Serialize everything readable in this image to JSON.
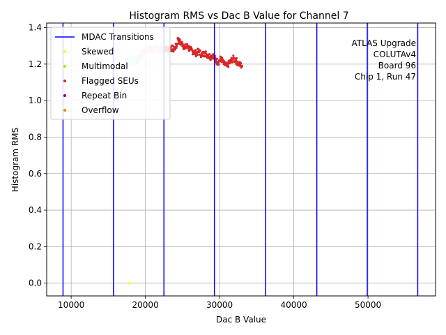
{
  "chart_data": {
    "type": "scatter",
    "title": "Histogram RMS vs Dac B Value for Channel 7",
    "xlabel": "Dac B Value",
    "ylabel": "Histogram RMS",
    "xlim": [
      6700,
      59100
    ],
    "ylim": [
      -0.07,
      1.425
    ],
    "xticks": [
      10000,
      20000,
      30000,
      40000,
      50000
    ],
    "xtick_labels": [
      "10000",
      "20000",
      "30000",
      "40000",
      "50000"
    ],
    "yticks": [
      0.0,
      0.2,
      0.4,
      0.6,
      0.8,
      1.0,
      1.2,
      1.4
    ],
    "ytick_labels": [
      "0.0",
      "0.2",
      "0.4",
      "0.6",
      "0.8",
      "1.0",
      "1.2",
      "1.4"
    ],
    "grid": true,
    "legend_position": "top-left",
    "legend": [
      {
        "label": "MDAC Transitions",
        "kind": "line",
        "color": "#0000ff"
      },
      {
        "label": "Skewed",
        "kind": "point",
        "color": "#ffff00"
      },
      {
        "label": "Multimodal",
        "kind": "point",
        "color": "#7fff00"
      },
      {
        "label": "Flagged SEUs",
        "kind": "point",
        "color": "#d62728"
      },
      {
        "label": "Repeat Bin",
        "kind": "point",
        "color": "#800080"
      },
      {
        "label": "Overflow",
        "kind": "point",
        "color": "#ff7f0e"
      }
    ],
    "annotation": [
      "ATLAS Upgrade",
      "COLUTAv4",
      "Board 96",
      "Chip 1, Run 47"
    ],
    "mdac_transitions": [
      8900,
      15700,
      22500,
      29300,
      36200,
      43100,
      49900,
      56700
    ],
    "series": [
      {
        "name": "Flagged SEUs",
        "color": "#d62728",
        "x_range": [
          22500,
          33000
        ],
        "points": [
          [
            22600,
            1.29
          ],
          [
            23000,
            1.28
          ],
          [
            23400,
            1.29
          ],
          [
            23800,
            1.28
          ],
          [
            24200,
            1.3
          ],
          [
            24400,
            1.34
          ],
          [
            24600,
            1.32
          ],
          [
            25000,
            1.31
          ],
          [
            25300,
            1.29
          ],
          [
            25700,
            1.3
          ],
          [
            26000,
            1.28
          ],
          [
            26400,
            1.27
          ],
          [
            26800,
            1.26
          ],
          [
            27200,
            1.27
          ],
          [
            27600,
            1.25
          ],
          [
            28000,
            1.26
          ],
          [
            28400,
            1.25
          ],
          [
            28800,
            1.24
          ],
          [
            29100,
            1.25
          ],
          [
            29500,
            1.22
          ],
          [
            29800,
            1.21
          ],
          [
            30200,
            1.23
          ],
          [
            30600,
            1.2
          ],
          [
            31000,
            1.19
          ],
          [
            31400,
            1.21
          ],
          [
            31800,
            1.23
          ],
          [
            32200,
            1.22
          ],
          [
            32600,
            1.2
          ],
          [
            33000,
            1.19
          ]
        ]
      },
      {
        "name": "Unflagged (pink)",
        "color": "#f4c7c7",
        "x_range": [
          19500,
          22500
        ],
        "points": [
          [
            19500,
            1.26
          ],
          [
            20000,
            1.27
          ],
          [
            20500,
            1.28
          ],
          [
            21000,
            1.28
          ],
          [
            21500,
            1.29
          ],
          [
            22000,
            1.28
          ],
          [
            22400,
            1.28
          ]
        ]
      },
      {
        "name": "Unflagged (cyan)",
        "color": "#b3e5ea",
        "x_range": [
          17400,
          19600
        ],
        "points": [
          [
            17400,
            1.21
          ],
          [
            17800,
            1.22
          ],
          [
            18200,
            1.23
          ],
          [
            18600,
            1.22
          ],
          [
            19000,
            1.23
          ],
          [
            19400,
            1.24
          ]
        ]
      },
      {
        "name": "Skewed",
        "color": "#ffff00",
        "x_range": [
          17700,
          17900
        ],
        "points": [
          [
            17800,
            0.0
          ]
        ]
      }
    ]
  }
}
